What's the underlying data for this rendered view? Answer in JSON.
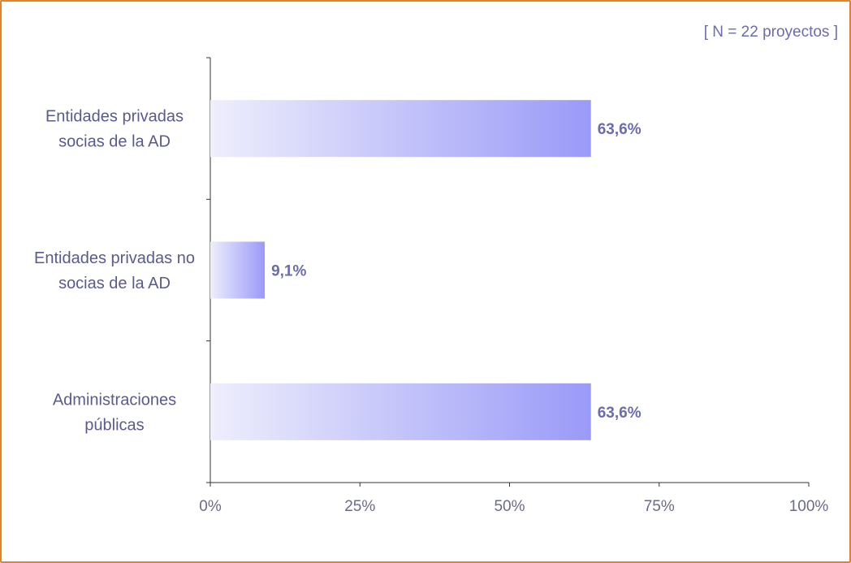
{
  "chart_data": {
    "type": "bar",
    "orientation": "horizontal",
    "annotation": "[ N = 22 proyectos ]",
    "title": "",
    "xlabel": "",
    "ylabel": "",
    "categories": [
      [
        "Entidades privadas",
        "socias de la AD"
      ],
      [
        "Entidades privadas no",
        "socias de la AD"
      ],
      [
        "Administraciones",
        "públicas"
      ]
    ],
    "values": [
      63.6,
      9.1,
      63.6
    ],
    "data_labels": [
      "63,6%",
      "9,1%",
      "63,6%"
    ],
    "xlim": [
      0,
      100
    ],
    "xticks": [
      0,
      25,
      50,
      75,
      100
    ],
    "xtick_labels": [
      "0%",
      "25%",
      "50%",
      "75%",
      "100%"
    ],
    "grid": false,
    "legend": "none",
    "colors": {
      "bar_start": "#eeeefc",
      "bar_end": "#9a9af8",
      "text": "#5a5a8f",
      "label": "#6b6bb0",
      "frame": "#e8822a",
      "axis": "#333333"
    }
  }
}
